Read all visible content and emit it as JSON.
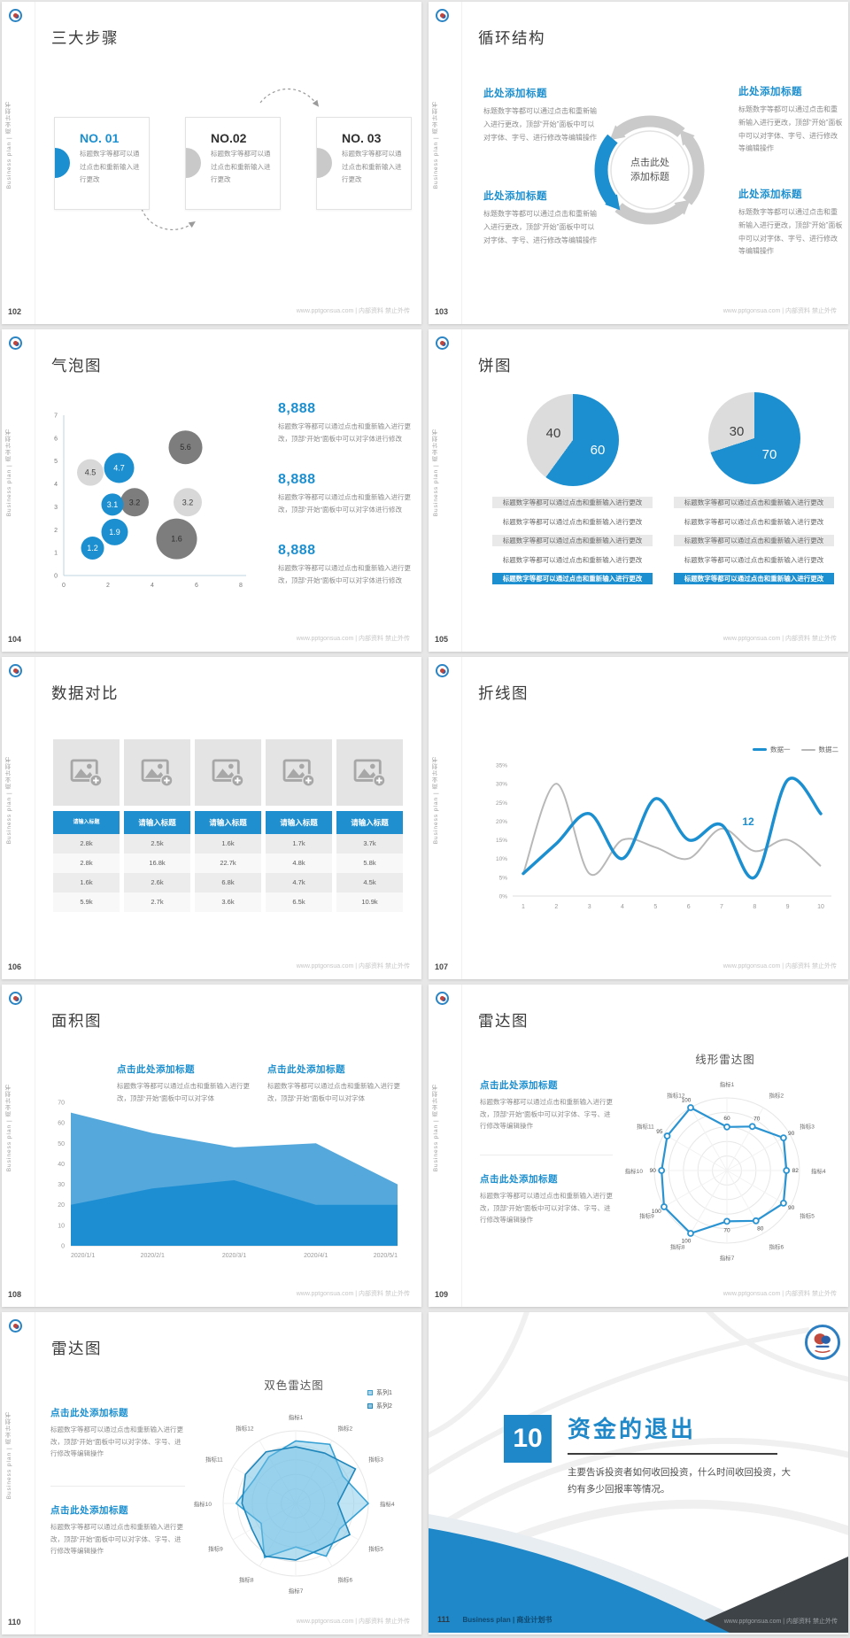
{
  "meta": {
    "footer_site": "www.pptgonsua.com | 内部资料 禁止外传",
    "sidebar_text": "Business plan | 商业计划书"
  },
  "colors": {
    "accent": "#1b8fd0",
    "bubble_dark": "#7d7d7d",
    "bubble_light": "#d8d8d8",
    "line_gray": "#b8b8b8",
    "area_light": "#54a8dc",
    "area_dark": "#1e8ed2",
    "pie_gray": "#dcdcdc",
    "radar_blue": "#2a93d2",
    "table_header": "#1f8fd0"
  },
  "slides": {
    "s102": {
      "page": "102",
      "title": "三大步骤",
      "steps": [
        {
          "no": "NO. 01",
          "body": "标题数字等都可以通过点击和重新输入进行更改"
        },
        {
          "no": "NO.02",
          "body": "标题数字等都可以通过点击和重新输入进行更改"
        },
        {
          "no": "NO. 03",
          "body": "标题数字等都可以通过点击和重新输入进行更改"
        }
      ]
    },
    "s103": {
      "page": "103",
      "title": "循环结构",
      "center": "点击此处添加标题",
      "blocks": [
        {
          "heading": "此处添加标题",
          "body": "标题数字等都可以通过点击和重新输入进行更改，顶部“开始”面板中可以对字体、字号、进行修改等编辑操作"
        },
        {
          "heading": "此处添加标题",
          "body": "标题数字等都可以通过点击和重新输入进行更改，顶部“开始”面板中可以对字体、字号、进行修改等编辑操作"
        },
        {
          "heading": "此处添加标题",
          "body": "标题数字等都可以通过点击和重新输入进行更改，顶部“开始”面板中可以对字体、字号、进行修改等编辑操作"
        },
        {
          "heading": "此处添加标题",
          "body": "标题数字等都可以通过点击和重新输入进行更改，顶部“开始”面板中可以对字体、字号、进行修改等编辑操作"
        }
      ]
    },
    "s104": {
      "page": "104",
      "title": "气泡图",
      "stats": [
        {
          "value": "8,888",
          "body": "标题数字等都可以通过点击和重新输入进行更改，顶部“开始”面板中可以对字体进行修改"
        },
        {
          "value": "8,888",
          "body": "标题数字等都可以通过点击和重新输入进行更改，顶部“开始”面板中可以对字体进行修改"
        },
        {
          "value": "8,888",
          "body": "标题数字等都可以通过点击和重新输入进行更改，顶部“开始”面板中可以对字体进行修改"
        }
      ],
      "chart": {
        "type": "scatter",
        "xlim": [
          0,
          8
        ],
        "ylim": [
          0,
          7
        ],
        "x_ticks": [
          0,
          2,
          4,
          6,
          8
        ],
        "y_ticks": [
          0,
          1,
          2,
          3,
          4,
          5,
          6,
          7
        ],
        "bubbles": [
          {
            "x": 1.2,
            "y": 4.5,
            "r": 15,
            "tone": "light",
            "label": "4.5"
          },
          {
            "x": 5.5,
            "y": 5.6,
            "r": 19,
            "tone": "dark",
            "label": "5.6"
          },
          {
            "x": 3.2,
            "y": 3.2,
            "r": 16,
            "tone": "dark",
            "label": "3.2"
          },
          {
            "x": 5.6,
            "y": 3.2,
            "r": 16,
            "tone": "light",
            "label": "3.2"
          },
          {
            "x": 5.1,
            "y": 1.6,
            "r": 23,
            "tone": "dark",
            "label": "1.6"
          },
          {
            "x": 2.5,
            "y": 4.7,
            "r": 17,
            "tone": "blue",
            "label": "4.7"
          },
          {
            "x": 2.2,
            "y": 3.1,
            "r": 12.5,
            "tone": "blue",
            "label": "3.1"
          },
          {
            "x": 2.3,
            "y": 1.9,
            "r": 15,
            "tone": "blue",
            "label": "1.9"
          },
          {
            "x": 1.3,
            "y": 1.2,
            "r": 13,
            "tone": "blue",
            "label": "1.2"
          }
        ]
      }
    },
    "s105": {
      "page": "105",
      "title": "饼图",
      "row_text": "标题数字等都可以通过点击和重新输入进行更改",
      "charts": [
        {
          "type": "pie",
          "values": [
            60,
            40
          ],
          "labels": [
            "60",
            "40"
          ]
        },
        {
          "type": "pie",
          "values": [
            70,
            30
          ],
          "labels": [
            "70",
            "30"
          ]
        }
      ]
    },
    "s106": {
      "page": "106",
      "title": "数据对比",
      "header": "请输入标题",
      "rows": [
        [
          "2.8k",
          "2.5k",
          "1.6k",
          "1.7k",
          "3.7k"
        ],
        [
          "2.8k",
          "16.8k",
          "22.7k",
          "4.8k",
          "5.8k"
        ],
        [
          "1.6k",
          "2.6k",
          "6.8k",
          "4.7k",
          "4.5k"
        ],
        [
          "5.9k",
          "2.7k",
          "3.6k",
          "6.5k",
          "10.9k"
        ]
      ]
    },
    "s107": {
      "page": "107",
      "title": "折线图",
      "annotation": "12",
      "chart": {
        "type": "line",
        "x": [
          1,
          2,
          3,
          4,
          5,
          6,
          7,
          8,
          9,
          10
        ],
        "ylim": [
          0,
          35
        ],
        "y_tick_labels": [
          "0%",
          "5%",
          "10%",
          "15%",
          "20%",
          "25%",
          "30%",
          "35%"
        ],
        "series": [
          {
            "name": "数据一",
            "values": [
              6,
              14,
              22,
              10,
              26,
              15,
              19,
              5,
              31,
              22
            ]
          },
          {
            "name": "数据二",
            "values": [
              6,
              30,
              6,
              15,
              13,
              10,
              18,
              12,
              15,
              8
            ]
          }
        ]
      }
    },
    "s108": {
      "page": "108",
      "title": "面积图",
      "blocks": [
        {
          "heading": "点击此处添加标题",
          "body": "标题数字等都可以通过点击和重新输入进行更改，顶部“开始”面板中可以对字体"
        },
        {
          "heading": "点击此处添加标题",
          "body": "标题数字等都可以通过点击和重新输入进行更改，顶部“开始”面板中可以对字体"
        }
      ],
      "chart": {
        "type": "area",
        "categories": [
          "2020/1/1",
          "2020/2/1",
          "2020/3/1",
          "2020/4/1",
          "2020/5/1"
        ],
        "ylim": [
          0,
          70
        ],
        "y_ticks": [
          0,
          10,
          20,
          30,
          40,
          50,
          60,
          70
        ],
        "series": [
          {
            "name": "light",
            "values": [
              65,
              55,
              48,
              50,
              30
            ]
          },
          {
            "name": "dark",
            "values": [
              20,
              28,
              32,
              20,
              20
            ]
          }
        ]
      }
    },
    "s109": {
      "page": "109",
      "title": "雷达图",
      "subtitle": "线形雷达图",
      "blocks": [
        {
          "heading": "点击此处添加标题",
          "body": "标题数字等都可以通过点击和重新输入进行更改，顶部“开始”面板中可以对字体、字号、进行修改等编辑操作"
        },
        {
          "heading": "点击此处添加标题",
          "body": "标题数字等都可以通过点击和重新输入进行更改，顶部“开始”面板中可以对字体、字号、进行修改等编辑操作"
        }
      ],
      "chart": {
        "type": "radar-line",
        "max": 100,
        "axes": [
          "指标1",
          "指标2",
          "指标3",
          "指标4",
          "指标5",
          "指标6",
          "指标7",
          "指标8",
          "指标9",
          "指标10",
          "指标11",
          "指标12"
        ],
        "values": [
          60,
          70,
          90,
          82,
          90,
          80,
          70,
          100,
          100,
          90,
          95,
          100
        ]
      }
    },
    "s110": {
      "page": "110",
      "title": "雷达图",
      "subtitle": "双色雷达图",
      "blocks": [
        {
          "heading": "点击此处添加标题",
          "body": "标题数字等都可以通过点击和重新输入进行更改，顶部“开始”面板中可以对字体、字号、进行修改等编辑操作"
        },
        {
          "heading": "点击此处添加标题",
          "body": "标题数字等都可以通过点击和重新输入进行更改，顶部“开始”面板中可以对字体、字号、进行修改等编辑操作"
        }
      ],
      "chart": {
        "type": "radar-fill",
        "max": 100,
        "axes": [
          "指标1",
          "指标2",
          "指标3",
          "指标4",
          "指标5",
          "指标6",
          "指标7",
          "指标8",
          "指标9",
          "指标10",
          "指标11",
          "指标12"
        ],
        "series": [
          {
            "name": "系列1",
            "values": [
              86,
              94,
              75,
              100,
              70,
              84,
              60,
              86,
              55,
              82,
              66,
              74
            ]
          },
          {
            "name": "系列2",
            "values": [
              78,
              80,
              95,
              58,
              86,
              72,
              78,
              84,
              70,
              74,
              80,
              82
            ]
          }
        ]
      }
    },
    "s111": {
      "page": "111",
      "number": "10",
      "title": "资金的退出",
      "body": "主要告诉投资者如何收回投资，什么时间收回投资，大约有多少回报率等情况。",
      "footer_left": "Business plan | 商业计划书"
    }
  }
}
